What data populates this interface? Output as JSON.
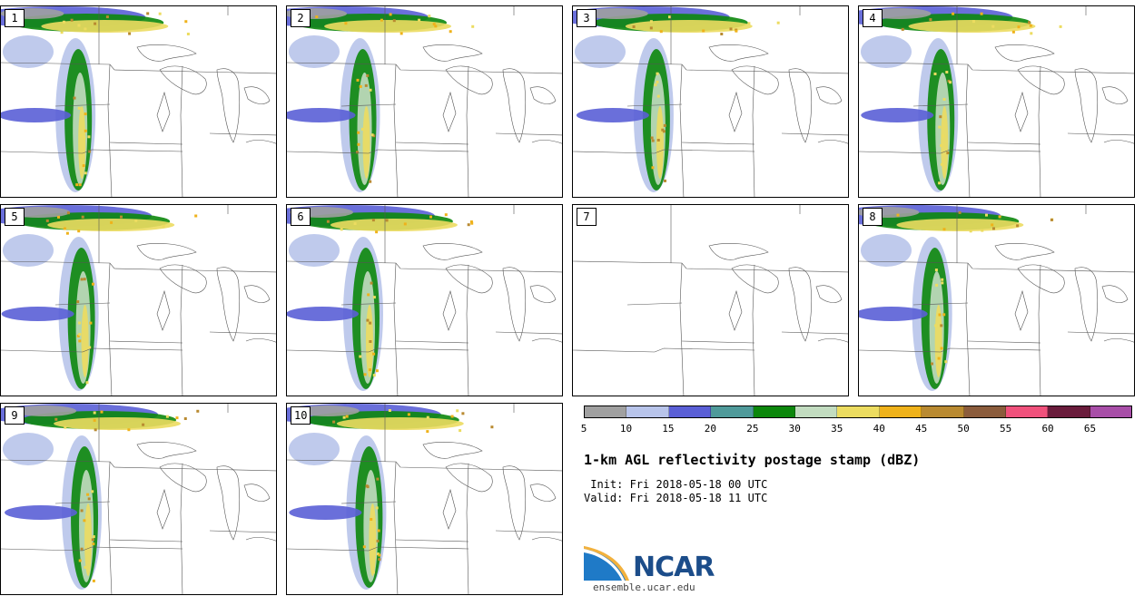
{
  "panels": [
    {
      "label": "1",
      "active": true,
      "variant": 0
    },
    {
      "label": "2",
      "active": true,
      "variant": 1
    },
    {
      "label": "3",
      "active": true,
      "variant": 2
    },
    {
      "label": "4",
      "active": true,
      "variant": 3
    },
    {
      "label": "5",
      "active": true,
      "variant": 4
    },
    {
      "label": "6",
      "active": true,
      "variant": 5
    },
    {
      "label": "7",
      "active": false,
      "variant": 6
    },
    {
      "label": "8",
      "active": true,
      "variant": 7
    },
    {
      "label": "9",
      "active": true,
      "variant": 8
    },
    {
      "label": "10",
      "active": true,
      "variant": 9
    }
  ],
  "colorbar": {
    "colors": [
      "#a0a0a0",
      "#b8c4ea",
      "#5a5fd6",
      "#4f9a9a",
      "#0c870c",
      "#c2dcc0",
      "#ecdc60",
      "#efb21b",
      "#b98a31",
      "#8b5c3c",
      "#f0517c",
      "#6a1c3c",
      "#a84ea8"
    ],
    "ticks": [
      "5",
      "10",
      "15",
      "20",
      "25",
      "30",
      "35",
      "40",
      "45",
      "50",
      "55",
      "60",
      "65"
    ]
  },
  "title": "1-km AGL reflectivity postage stamp (dBZ)",
  "init": " Init: Fri 2018-05-18 00 UTC",
  "valid": "Valid: Fri 2018-05-18 11 UTC",
  "logo": {
    "name": "NCAR",
    "icon": "ncar-swoosh-logo"
  },
  "website": "ensemble.ucar.edu"
}
